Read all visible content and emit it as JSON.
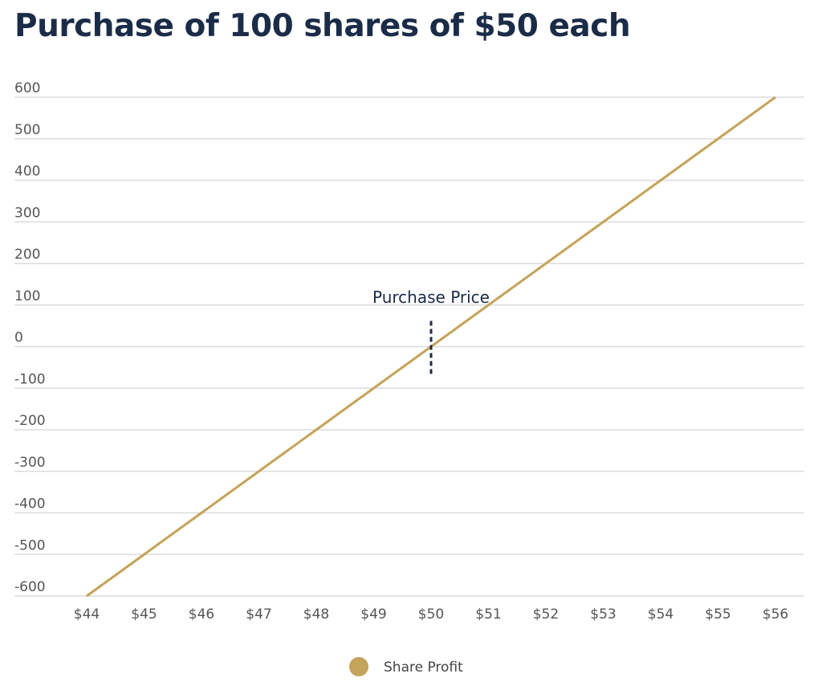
{
  "chart_data": {
    "type": "line",
    "title": "Purchase of 100 shares of $50 each",
    "x": [
      44,
      45,
      46,
      47,
      48,
      49,
      50,
      51,
      52,
      53,
      54,
      55,
      56
    ],
    "x_tick_labels": [
      "$44",
      "$45",
      "$46",
      "$47",
      "$48",
      "$49",
      "$50",
      "$51",
      "$52",
      "$53",
      "$54",
      "$55",
      "$56"
    ],
    "y_tick_labels": [
      "600",
      "500",
      "400",
      "300",
      "200",
      "100",
      "0",
      "-100",
      "-200",
      "-300",
      "-400",
      "-500",
      "-600"
    ],
    "ylim": [
      -600,
      600
    ],
    "xlim": [
      44,
      56
    ],
    "grid": true,
    "series": [
      {
        "name": "Share Profit",
        "color": "#c4a35a",
        "values": [
          -600,
          -500,
          -400,
          -300,
          -200,
          -100,
          0,
          100,
          200,
          300,
          400,
          500,
          600
        ]
      }
    ],
    "annotations": [
      {
        "text": "Purchase Price",
        "x": 50,
        "style": "dashed vertical marker",
        "color": "#1b2c48"
      }
    ],
    "legend": {
      "position": "bottom",
      "entries": [
        "Share Profit"
      ]
    }
  }
}
